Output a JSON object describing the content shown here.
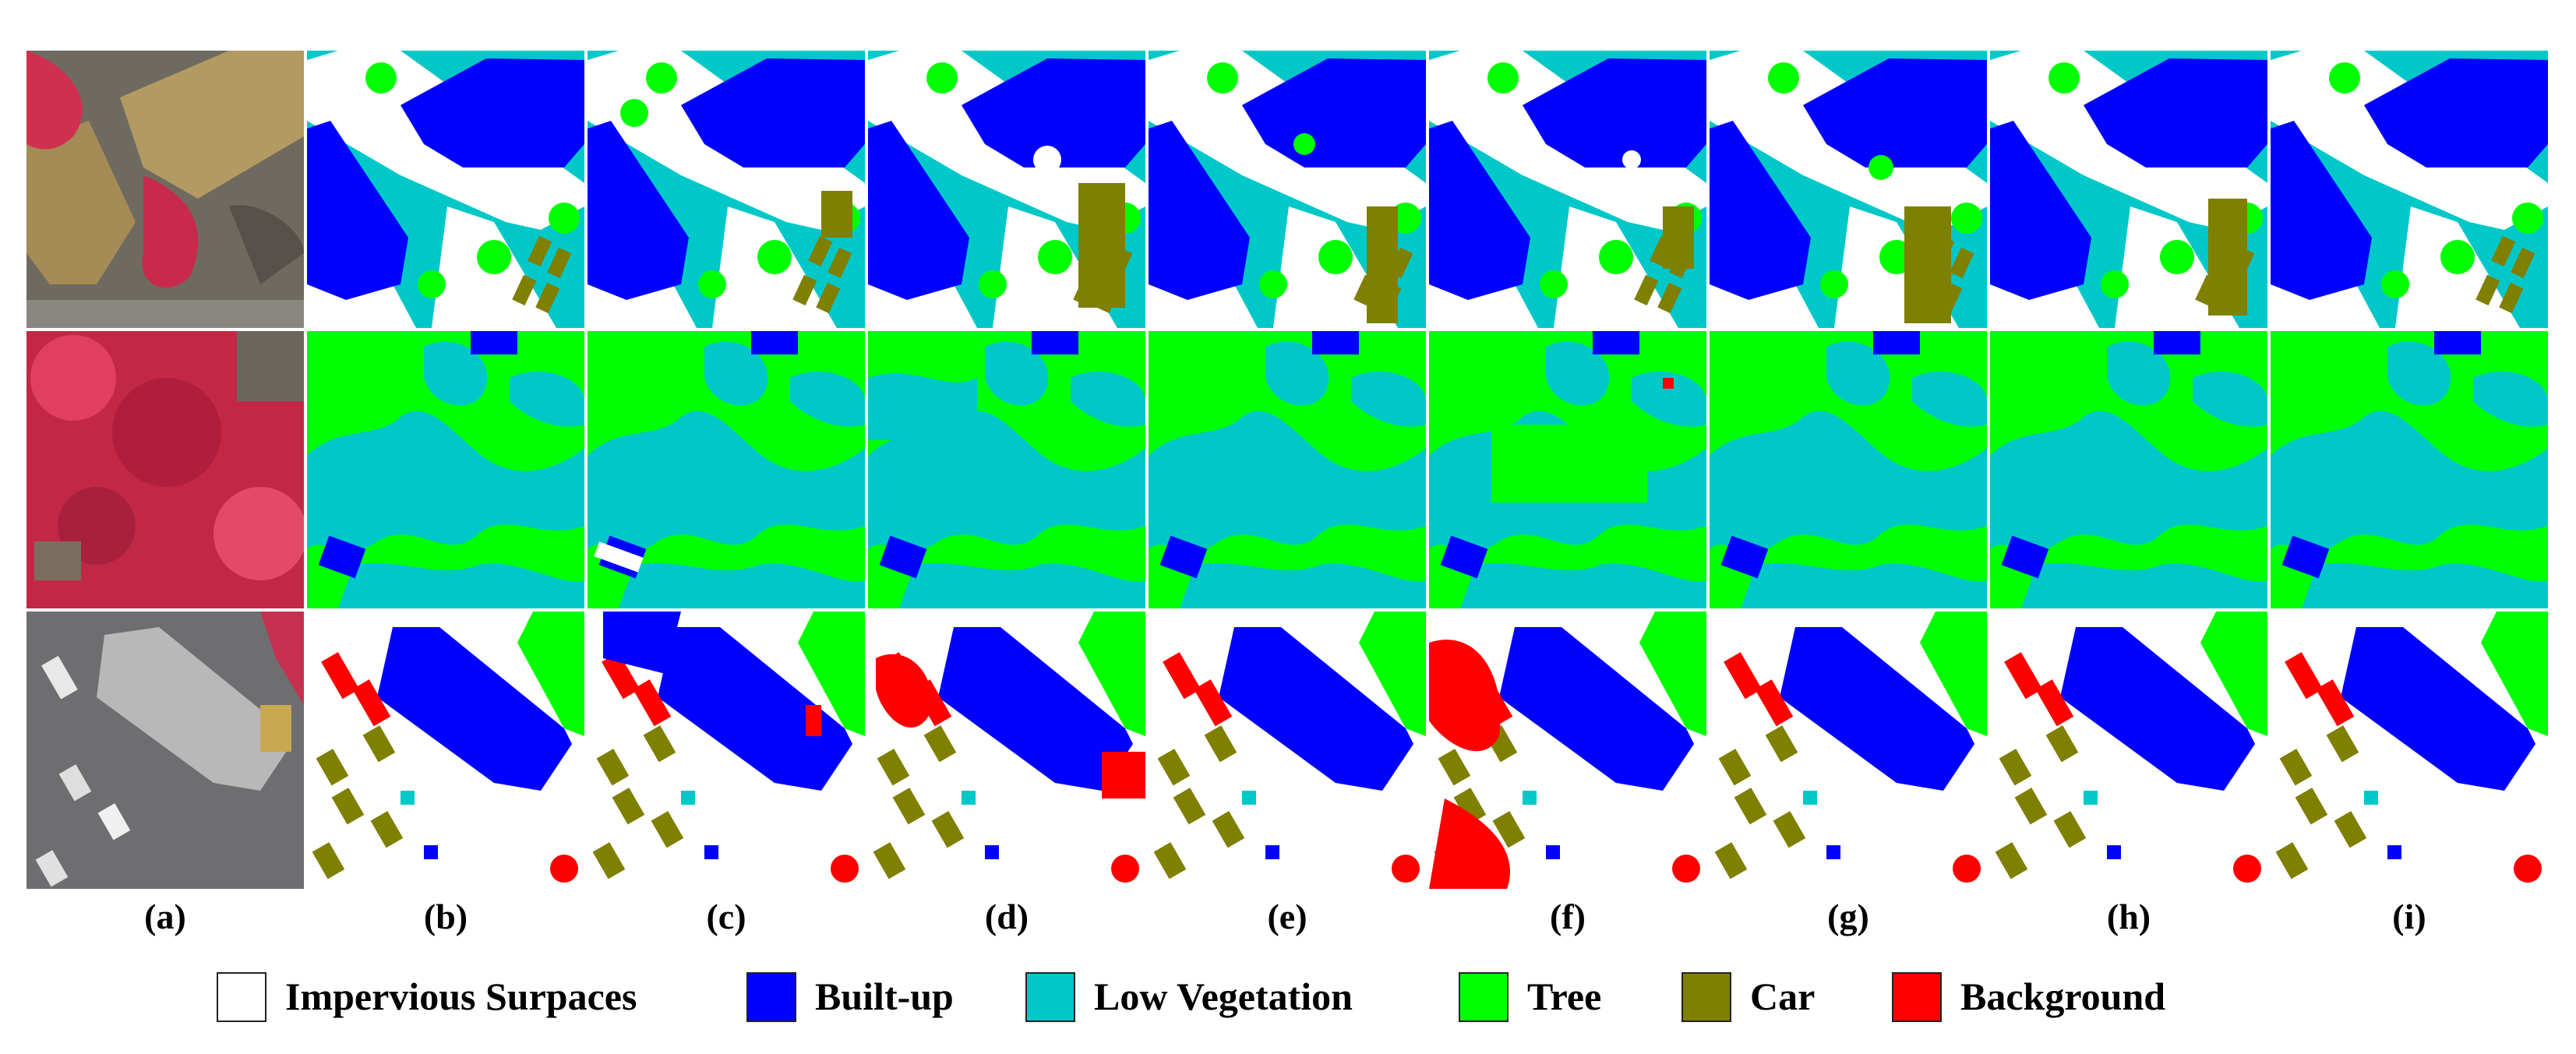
{
  "column_labels": [
    "(a)",
    "(b)",
    "(c)",
    "(d)",
    "(e)",
    "(f)",
    "(g)",
    "(h)",
    "(i)"
  ],
  "legend": [
    {
      "label": "Impervious Surpaces",
      "color": "#ffffff"
    },
    {
      "label": "Built-up",
      "color": "#0000ff"
    },
    {
      "label": "Low Vegetation",
      "color": "#00c8c8"
    },
    {
      "label": "Tree",
      "color": "#00ff00"
    },
    {
      "label": "Car",
      "color": "#7f7f00"
    },
    {
      "label": "Background",
      "color": "#ff0000"
    }
  ]
}
